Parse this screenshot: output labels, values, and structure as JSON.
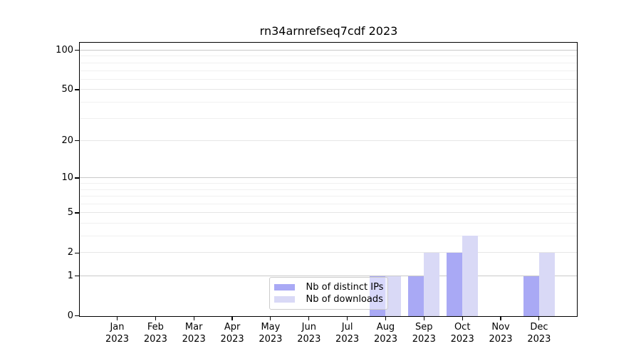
{
  "chart_data": {
    "type": "bar",
    "title": "rn34arnrefseq7cdf 2023",
    "categories": [
      "Jan 2023",
      "Feb 2023",
      "Mar 2023",
      "Apr 2023",
      "May 2023",
      "Jun 2023",
      "Jul 2023",
      "Aug 2023",
      "Sep 2023",
      "Oct 2023",
      "Nov 2023",
      "Dec 2023"
    ],
    "x_tick_months": [
      "Jan",
      "Feb",
      "Mar",
      "Apr",
      "May",
      "Jun",
      "Jul",
      "Aug",
      "Sep",
      "Oct",
      "Nov",
      "Dec"
    ],
    "x_tick_year": "2023",
    "series": [
      {
        "name": "Nb of distinct IPs",
        "color": "#a9a9f5",
        "values": [
          0,
          0,
          0,
          0,
          0,
          0,
          0,
          1,
          1,
          2,
          0,
          1
        ]
      },
      {
        "name": "Nb of downloads",
        "color": "#d9d9f6",
        "values": [
          0,
          0,
          0,
          0,
          0,
          0,
          0,
          1,
          2,
          3,
          0,
          2
        ]
      }
    ],
    "yscale": "log1p",
    "ylim": [
      0,
      114
    ],
    "yticks": [
      0,
      1,
      2,
      5,
      10,
      20,
      50,
      100
    ],
    "grid": {
      "major": {
        "values": [
          1,
          10,
          100
        ],
        "color": "#c9c9c9"
      },
      "mid": {
        "values": [
          2,
          5,
          20,
          50
        ],
        "color": "#e6e6e6"
      },
      "minor": {
        "values": [
          3,
          4,
          6,
          7,
          8,
          9,
          30,
          40,
          60,
          70,
          80,
          90
        ],
        "color": "#f0f0f0"
      }
    },
    "legend_position": "lower center",
    "grid_on": true
  },
  "legend": {
    "items": [
      {
        "label": "Nb of distinct IPs",
        "color": "#a9a9f5"
      },
      {
        "label": "Nb of downloads",
        "color": "#d9d9f6"
      }
    ]
  },
  "colors": {
    "axis_frame": "#000000",
    "background": "#ffffff"
  }
}
